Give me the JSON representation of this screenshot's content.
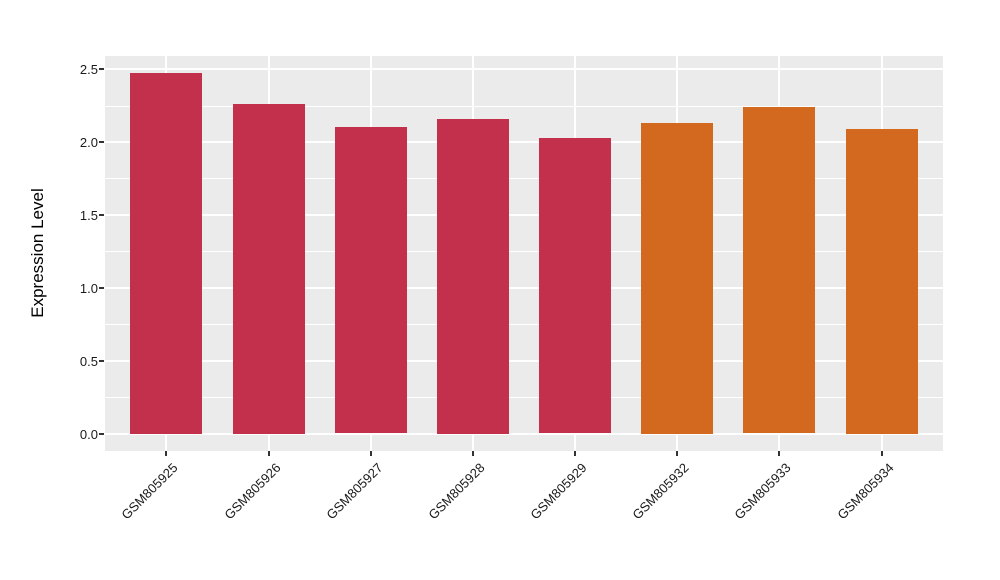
{
  "chart_data": {
    "type": "bar",
    "title": "",
    "xlabel": "",
    "ylabel": "Expression Level",
    "categories": [
      "GSM805925",
      "GSM805926",
      "GSM805927",
      "GSM805928",
      "GSM805929",
      "GSM805932",
      "GSM805933",
      "GSM805934"
    ],
    "values": [
      2.47,
      2.26,
      2.1,
      2.16,
      2.03,
      2.13,
      2.24,
      2.09
    ],
    "bar_colors": [
      "#C2304B",
      "#C2304B",
      "#C2304B",
      "#C2304B",
      "#C2304B",
      "#D2691E",
      "#D2691E",
      "#D2691E"
    ],
    "y_ticks": [
      0.0,
      0.5,
      1.0,
      1.5,
      2.0,
      2.5
    ],
    "y_tick_labels": [
      "0.0",
      "0.5",
      "1.0",
      "1.5",
      "2.0",
      "2.5"
    ],
    "y_minor_ticks": [
      0.25,
      0.75,
      1.25,
      1.75,
      2.25
    ],
    "ylim": [
      -0.12,
      2.59
    ],
    "bar_width_fraction": 0.7,
    "grid": "horizontal major+minor, vertical major at category centers",
    "legend": "none",
    "colors": {
      "figure_background": "#FFFFFF",
      "panel_background": "#EBEBEB",
      "grid_line": "#FFFFFF",
      "axis_text": "#1A1A1A",
      "axis_title": "#000000",
      "tick_mark": "#333333",
      "bar_red": "#C2304B",
      "bar_orange": "#D2691E"
    }
  }
}
